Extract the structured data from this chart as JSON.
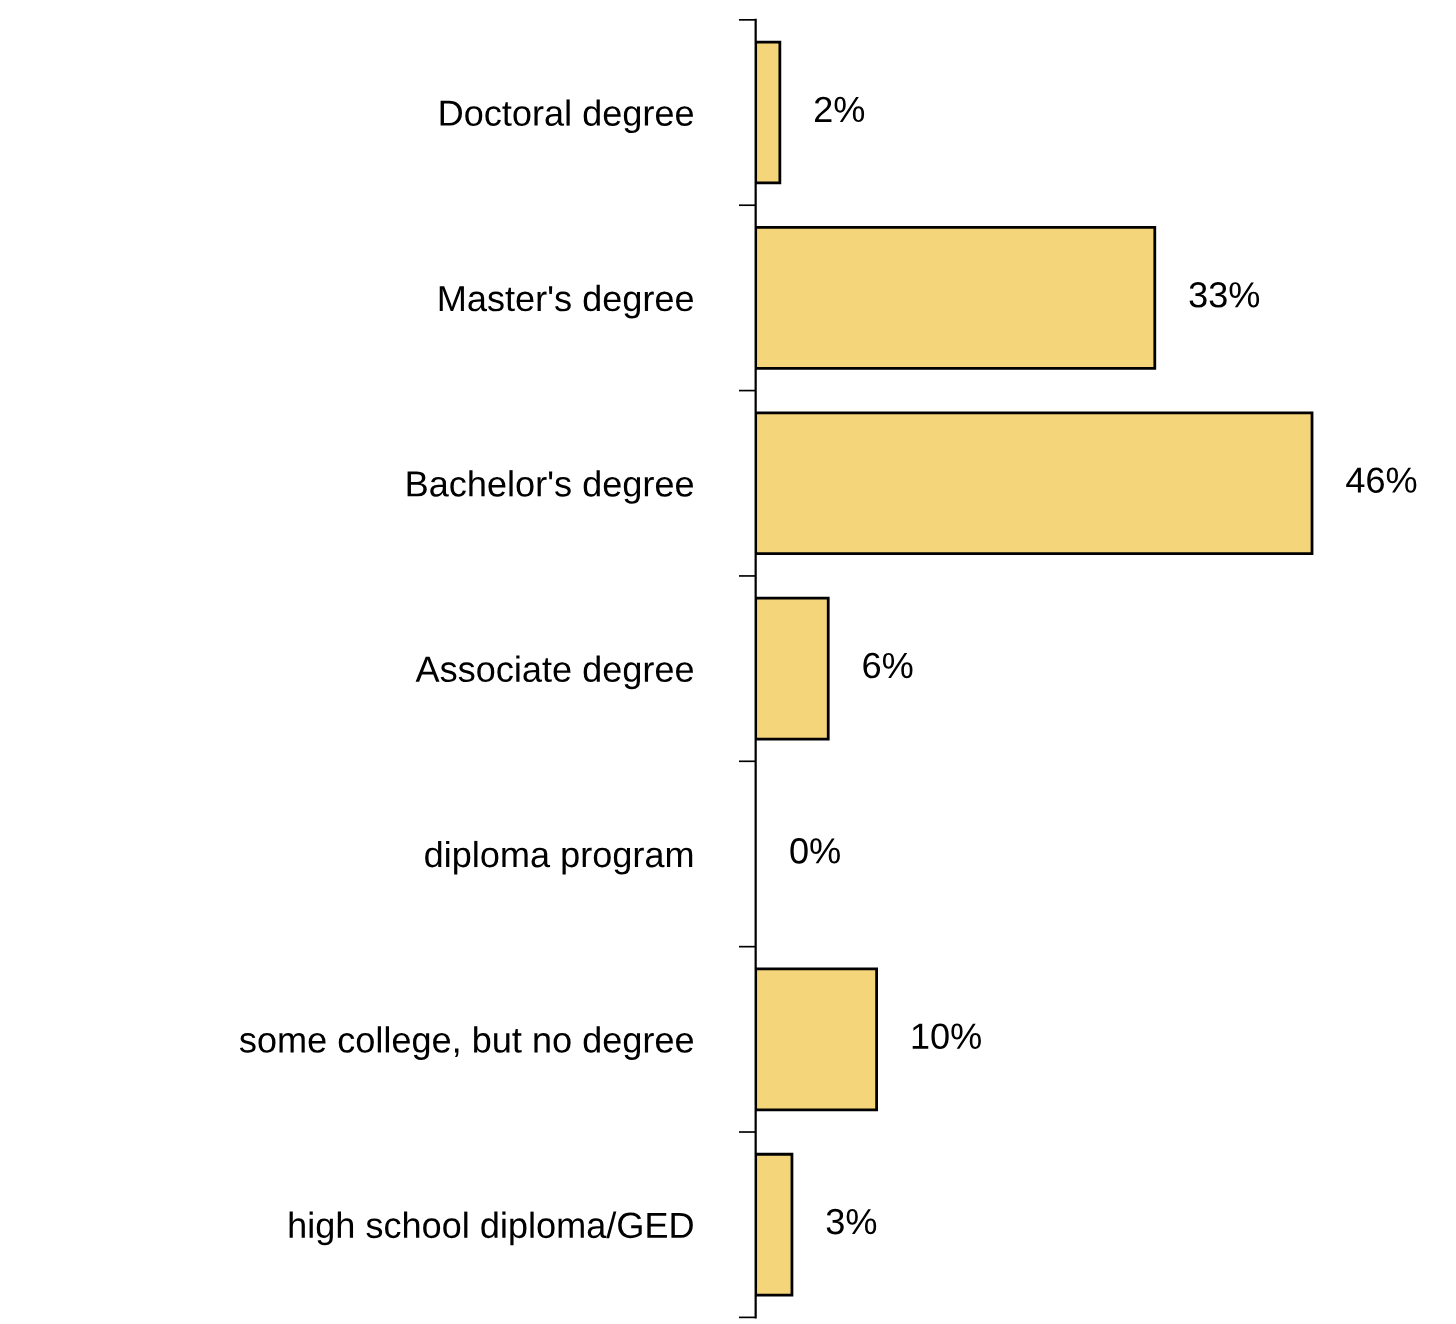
{
  "chart_data": {
    "type": "bar",
    "orientation": "horizontal",
    "categories": [
      "Doctoral degree",
      "Master's degree",
      "Bachelor's degree",
      "Associate degree",
      "diploma program",
      "some college, but no degree",
      "high school diploma/GED"
    ],
    "values": [
      2,
      33,
      46,
      6,
      0,
      10,
      3
    ],
    "color": "#f5d57a",
    "value_labels": [
      "2%",
      "33%",
      "46%",
      "6%",
      "0%",
      "10%",
      "3%"
    ],
    "grid": false
  }
}
